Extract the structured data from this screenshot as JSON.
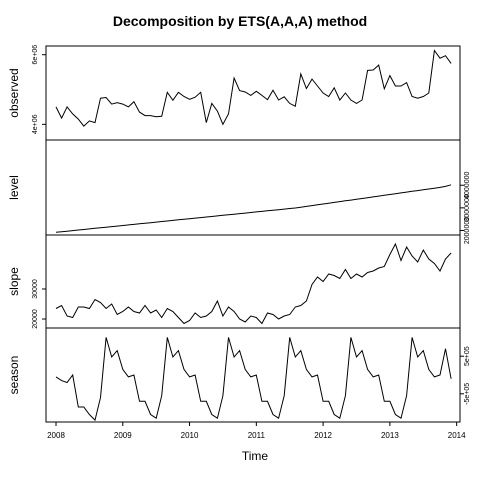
{
  "chart_data": {
    "type": "line",
    "title": "Decomposition by ETS(A,A,A) method",
    "xlabel": "Time",
    "xlim": [
      2007.85,
      2014.05
    ],
    "x_ticks": [
      "2008",
      "2009",
      "2010",
      "2011",
      "2012",
      "2013",
      "2014"
    ],
    "x_start": 2008.0,
    "x_step": 0.08333,
    "grid": false,
    "legend": "none",
    "panels": [
      {
        "name": "observed",
        "ylim": [
          3550000,
          6250000
        ],
        "y_ticks": [
          {
            "value": 4000000,
            "label": "4e+06"
          },
          {
            "value": 6000000,
            "label": "6e+06"
          }
        ],
        "values": [
          4500000,
          4180000,
          4500000,
          4300000,
          4150000,
          3950000,
          4100000,
          4050000,
          4750000,
          4770000,
          4580000,
          4620000,
          4580000,
          4500000,
          4650000,
          4350000,
          4250000,
          4250000,
          4220000,
          4230000,
          4920000,
          4690000,
          4920000,
          4800000,
          4720000,
          4780000,
          4920000,
          4050000,
          4600000,
          4380000,
          4000000,
          4300000,
          5330000,
          4970000,
          4930000,
          4830000,
          4950000,
          4830000,
          4710000,
          4980000,
          4700000,
          4790000,
          4600000,
          4520000,
          5450000,
          5030000,
          5300000,
          5100000,
          4900000,
          4800000,
          5050000,
          4700000,
          4900000,
          4700000,
          4600000,
          4700000,
          5550000,
          5560000,
          5700000,
          5020000,
          5400000,
          5100000,
          5100000,
          5200000,
          4800000,
          4750000,
          4800000,
          4900000,
          6120000,
          5900000,
          5970000,
          5750000
        ]
      },
      {
        "name": "level",
        "ylim": [
          1800000,
          6000000
        ],
        "y_ticks": [
          {
            "value": 2000000,
            "label": "2000000"
          },
          {
            "value": 3000000,
            "label": "3000000"
          },
          {
            "value": 4000000,
            "label": "4000000"
          }
        ],
        "values": [
          1920000,
          1945000,
          1970000,
          1995000,
          2020000,
          2045000,
          2070000,
          2095000,
          2120000,
          2145000,
          2170000,
          2195000,
          2220000,
          2245000,
          2270000,
          2295000,
          2320000,
          2345000,
          2370000,
          2395000,
          2420000,
          2445000,
          2470000,
          2495000,
          2520000,
          2545000,
          2570000,
          2595000,
          2620000,
          2645000,
          2670000,
          2695000,
          2720000,
          2745000,
          2770000,
          2795000,
          2820000,
          2845000,
          2870000,
          2895000,
          2920000,
          2945000,
          2970000,
          2995000,
          3030000,
          3065000,
          3100000,
          3135000,
          3170000,
          3205000,
          3240000,
          3275000,
          3310000,
          3345000,
          3380000,
          3415000,
          3450000,
          3485000,
          3520000,
          3555000,
          3590000,
          3625000,
          3660000,
          3695000,
          3730000,
          3765000,
          3800000,
          3835000,
          3870000,
          3905000,
          3950000,
          4020000
        ]
      },
      {
        "name": "slope",
        "ylim": [
          17000,
          48000
        ],
        "y_ticks": [
          {
            "value": 20000,
            "label": "20000"
          },
          {
            "value": 30000,
            "label": "30000"
          }
        ],
        "values": [
          23500,
          24500,
          21000,
          20500,
          24000,
          24000,
          23500,
          26500,
          25500,
          23500,
          25000,
          21500,
          22500,
          24000,
          22500,
          22000,
          24500,
          22000,
          23000,
          20500,
          23500,
          22500,
          20500,
          18500,
          19500,
          22000,
          20500,
          21000,
          22500,
          26000,
          21000,
          24000,
          22500,
          20000,
          19000,
          21000,
          20500,
          18500,
          22000,
          21500,
          20000,
          21000,
          21500,
          24000,
          24500,
          26000,
          31500,
          34000,
          32500,
          35000,
          34500,
          33500,
          36500,
          33500,
          35000,
          34000,
          35500,
          36000,
          37000,
          37500,
          41500,
          45000,
          39500,
          44000,
          41000,
          39000,
          43000,
          40000,
          38500,
          36000,
          40000,
          42000
        ]
      },
      {
        "name": "season",
        "ylim": [
          -1250000,
          1250000
        ],
        "y_ticks": [
          {
            "value": -500000,
            "label": "-5e+05"
          },
          {
            "value": 500000,
            "label": "5e+05"
          }
        ],
        "values": [
          -50000,
          -150000,
          -200000,
          0,
          -850000,
          -850000,
          -1050000,
          -1200000,
          -600000,
          1000000,
          480000,
          650000,
          150000,
          -50000,
          0,
          -700000,
          -700000,
          -1050000,
          -1150000,
          -550000,
          1000000,
          480000,
          650000,
          150000,
          -50000,
          0,
          -700000,
          -700000,
          -1050000,
          -1150000,
          -550000,
          1000000,
          480000,
          650000,
          150000,
          -50000,
          0,
          -700000,
          -700000,
          -1050000,
          -1150000,
          -550000,
          1000000,
          480000,
          650000,
          150000,
          -50000,
          0,
          -700000,
          -700000,
          -1050000,
          -1150000,
          -550000,
          1000000,
          480000,
          650000,
          150000,
          -50000,
          0,
          -700000,
          -700000,
          -1050000,
          -1150000,
          -550000,
          1000000,
          480000,
          650000,
          150000,
          -50000,
          0,
          700000,
          -100000
        ]
      }
    ]
  }
}
